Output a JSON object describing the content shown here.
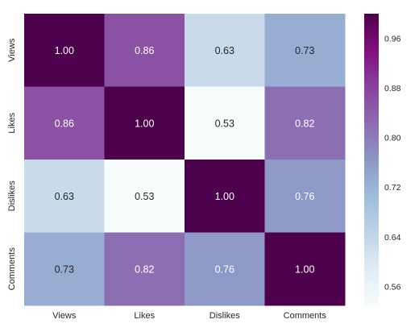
{
  "chart_data": {
    "type": "heatmap",
    "title": "",
    "xlabel": "",
    "ylabel": "",
    "x_categories": [
      "Views",
      "Likes",
      "Dislikes",
      "Comments"
    ],
    "y_categories": [
      "Views",
      "Likes",
      "Dislikes",
      "Comments"
    ],
    "values": [
      [
        1.0,
        0.86,
        0.63,
        0.73
      ],
      [
        0.86,
        1.0,
        0.53,
        0.82
      ],
      [
        0.63,
        0.53,
        1.0,
        0.76
      ],
      [
        0.73,
        0.82,
        0.76,
        1.0
      ]
    ],
    "value_labels": [
      [
        "1.00",
        "0.86",
        "0.63",
        "0.73"
      ],
      [
        "0.86",
        "1.00",
        "0.53",
        "0.82"
      ],
      [
        "0.63",
        "0.53",
        "1.00",
        "0.76"
      ],
      [
        "0.73",
        "0.82",
        "0.76",
        "1.00"
      ]
    ],
    "colormap": "BuPu",
    "vmin": 0.53,
    "vmax": 1.0,
    "colorbar": {
      "ticks": [
        0.56,
        0.64,
        0.72,
        0.8,
        0.88,
        0.96
      ],
      "tick_labels": [
        "0.56",
        "0.64",
        "0.72",
        "0.80",
        "0.88",
        "0.96"
      ],
      "placement": "right"
    },
    "grid": false,
    "colors": {
      "low": "#f7fcfd",
      "high": "#4d004b",
      "tick_text": "#262626"
    }
  }
}
